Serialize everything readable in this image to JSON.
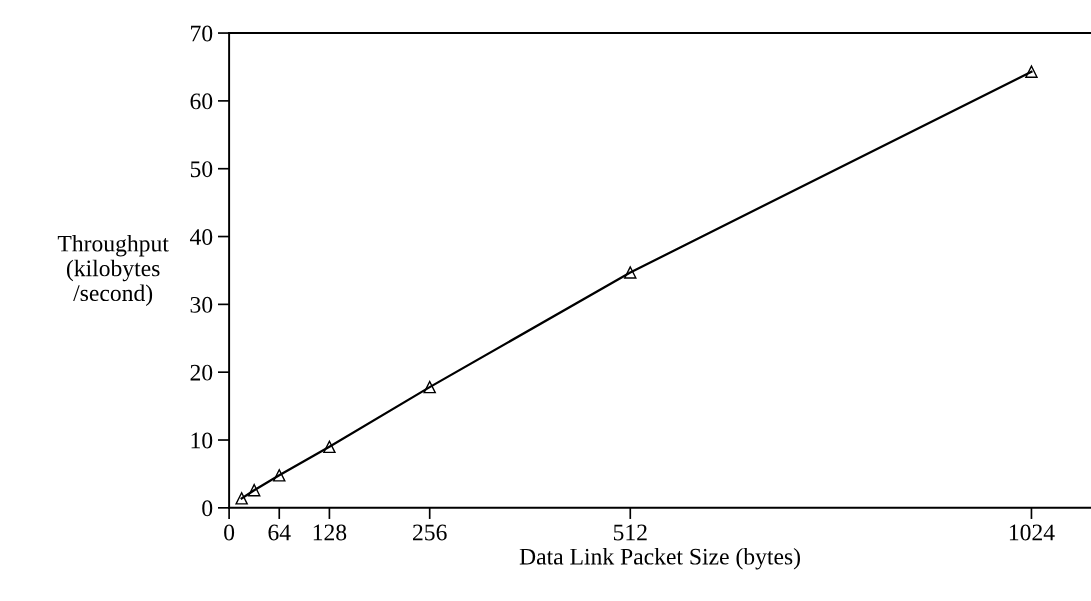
{
  "chart_data": {
    "type": "line",
    "xlabel": "Data Link Packet Size (bytes)",
    "ylabel": "Throughput\n(kilobytes\n/second)",
    "x": [
      16,
      32,
      64,
      128,
      256,
      512,
      1024
    ],
    "series": [
      {
        "color": "#000000",
        "values": [
          1.4,
          2.6,
          4.8,
          9.0,
          17.8,
          34.7,
          64.3
        ]
      }
    ],
    "xlim": [
      0,
      1100
    ],
    "xticks": [
      0,
      64,
      128,
      256,
      512,
      1024
    ],
    "ylim": [
      0,
      70
    ],
    "yticks": [
      0,
      10,
      20,
      30,
      40,
      50,
      60,
      70
    ],
    "marker": "triangle",
    "line_style": "solid",
    "grid": false,
    "legend": false
  }
}
